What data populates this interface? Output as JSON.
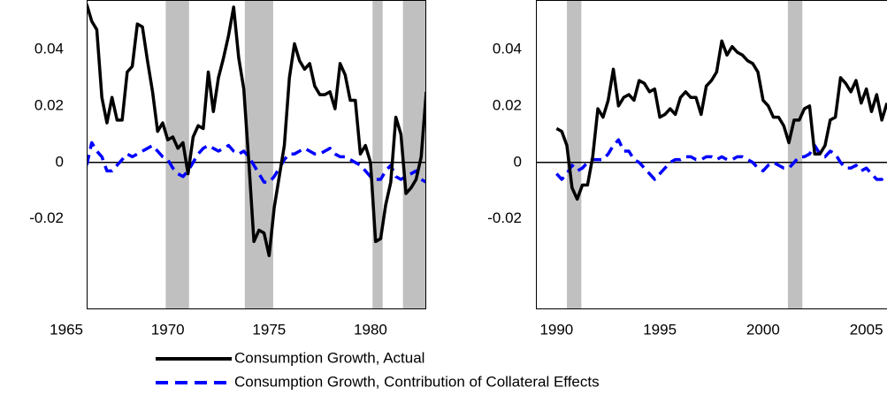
{
  "chart_data": [
    {
      "type": "line",
      "x": [
        1966,
        1966.25,
        1966.5,
        1966.75,
        1967,
        1967.25,
        1967.5,
        1967.75,
        1968,
        1968.25,
        1968.5,
        1968.75,
        1969,
        1969.25,
        1969.5,
        1969.75,
        1970,
        1970.25,
        1970.5,
        1970.75,
        1971,
        1971.25,
        1971.5,
        1971.75,
        1972,
        1972.25,
        1972.5,
        1972.75,
        1973,
        1973.25,
        1973.5,
        1973.75,
        1974,
        1974.25,
        1974.5,
        1974.75,
        1975,
        1975.25,
        1975.5,
        1975.75,
        1976,
        1976.25,
        1976.5,
        1976.75,
        1977,
        1977.25,
        1977.5,
        1977.75,
        1978,
        1978.25,
        1978.5,
        1978.75,
        1979,
        1979.25,
        1979.5,
        1979.75,
        1980,
        1980.25,
        1980.5,
        1980.75,
        1981,
        1981.25,
        1981.5,
        1981.75,
        1982,
        1982.25,
        1982.5,
        1982.75
      ],
      "series": [
        {
          "name": "Consumption Growth, Actual",
          "color": "#000000",
          "dashed": false,
          "values": [
            0.056,
            0.05,
            0.047,
            0.023,
            0.014,
            0.023,
            0.015,
            0.015,
            0.032,
            0.034,
            0.049,
            0.048,
            0.036,
            0.025,
            0.011,
            0.014,
            0.008,
            0.009,
            0.005,
            0.007,
            -0.004,
            0.009,
            0.013,
            0.012,
            0.032,
            0.018,
            0.03,
            0.037,
            0.045,
            0.055,
            0.037,
            0.026,
            0.0,
            -0.028,
            -0.024,
            -0.025,
            -0.033,
            -0.016,
            -0.005,
            0.006,
            0.03,
            0.042,
            0.036,
            0.033,
            0.035,
            0.027,
            0.024,
            0.024,
            0.025,
            0.019,
            0.035,
            0.031,
            0.022,
            0.022,
            0.003,
            0.006,
            0.0,
            -0.028,
            -0.027,
            -0.015,
            -0.007,
            0.016,
            0.01,
            -0.011,
            -0.009,
            -0.006,
            0.002,
            0.025
          ]
        },
        {
          "name": "Consumption Growth, Contribution of Collateral Effects",
          "color": "#0000ff",
          "dashed": true,
          "values": [
            -0.001,
            0.007,
            0.004,
            0.002,
            -0.003,
            -0.003,
            -0.001,
            0.001,
            0.003,
            0.002,
            0.003,
            0.004,
            0.005,
            0.006,
            0.004,
            0.002,
            0.001,
            -0.002,
            -0.004,
            -0.005,
            -0.003,
            0.0,
            0.003,
            0.005,
            0.006,
            0.005,
            0.004,
            0.005,
            0.006,
            0.004,
            0.003,
            0.004,
            0.002,
            -0.001,
            -0.004,
            -0.007,
            -0.007,
            -0.005,
            -0.002,
            0.001,
            0.003,
            0.003,
            0.004,
            0.005,
            0.004,
            0.003,
            0.003,
            0.004,
            0.005,
            0.003,
            0.002,
            0.002,
            0.001,
            0.0,
            -0.001,
            -0.003,
            -0.005,
            -0.006,
            -0.006,
            -0.003,
            -0.001,
            -0.005,
            -0.006,
            -0.005,
            -0.004,
            -0.003,
            -0.006,
            -0.007
          ]
        }
      ],
      "recessions": [
        [
          1969.9,
          1971.05
        ],
        [
          1973.8,
          1975.2
        ],
        [
          1980.1,
          1980.6
        ],
        [
          1981.6,
          1982.75
        ]
      ],
      "recession_color": "#c0c0c0",
      "xlim": [
        1966,
        1982.75
      ],
      "xticks": [
        1965,
        1970,
        1975,
        1980
      ],
      "ylim": [
        -0.052,
        0.0575
      ],
      "yticks": [
        {
          "value": 0.04,
          "label": "0.04"
        },
        {
          "value": 0.02,
          "label": "0.02"
        },
        0,
        {
          "value": -0.02,
          "label": "-0.02"
        }
      ]
    },
    {
      "type": "line",
      "x": [
        1990,
        1990.25,
        1990.5,
        1990.75,
        1991,
        1991.25,
        1991.5,
        1991.75,
        1992,
        1992.25,
        1992.5,
        1992.75,
        1993,
        1993.25,
        1993.5,
        1993.75,
        1994,
        1994.25,
        1994.5,
        1994.75,
        1995,
        1995.25,
        1995.5,
        1995.75,
        1996,
        1996.25,
        1996.5,
        1996.75,
        1997,
        1997.25,
        1997.5,
        1997.75,
        1998,
        1998.25,
        1998.5,
        1998.75,
        1999,
        1999.25,
        1999.5,
        1999.75,
        2000,
        2000.25,
        2000.5,
        2000.75,
        2001,
        2001.25,
        2001.5,
        2001.75,
        2002,
        2002.25,
        2002.5,
        2002.75,
        2003,
        2003.25,
        2003.5,
        2003.75,
        2004,
        2004.25,
        2004.5,
        2004.75,
        2005,
        2005.25,
        2005.5,
        2005.75,
        2006
      ],
      "series": [
        {
          "name": "Consumption Growth, Actual",
          "color": "#000000",
          "dashed": false,
          "values": [
            0.012,
            0.011,
            0.006,
            -0.009,
            -0.013,
            -0.008,
            -0.008,
            0.002,
            0.019,
            0.016,
            0.022,
            0.033,
            0.02,
            0.023,
            0.024,
            0.022,
            0.029,
            0.028,
            0.025,
            0.026,
            0.016,
            0.017,
            0.019,
            0.017,
            0.023,
            0.025,
            0.023,
            0.023,
            0.017,
            0.027,
            0.029,
            0.032,
            0.043,
            0.038,
            0.041,
            0.039,
            0.038,
            0.036,
            0.035,
            0.032,
            0.022,
            0.02,
            0.016,
            0.016,
            0.013,
            0.007,
            0.015,
            0.015,
            0.019,
            0.02,
            0.003,
            0.003,
            0.006,
            0.015,
            0.016,
            0.03,
            0.028,
            0.025,
            0.029,
            0.021,
            0.026,
            0.018,
            0.024,
            0.015,
            0.021
          ]
        },
        {
          "name": "Consumption Growth, Contribution of Collateral Effects",
          "color": "#0000ff",
          "dashed": true,
          "values": [
            -0.004,
            -0.006,
            -0.004,
            -0.001,
            -0.003,
            -0.002,
            0.0,
            0.001,
            0.001,
            0.001,
            0.003,
            0.006,
            0.008,
            0.004,
            0.004,
            0.001,
            0.0,
            -0.002,
            -0.004,
            -0.006,
            -0.004,
            -0.002,
            0.0,
            0.001,
            0.001,
            0.002,
            0.002,
            0.001,
            0.001,
            0.002,
            0.002,
            0.001,
            0.002,
            0.001,
            0.001,
            0.002,
            0.002,
            0.001,
            0.0,
            -0.002,
            -0.003,
            -0.001,
            0.0,
            -0.001,
            -0.002,
            -0.002,
            0.0,
            0.002,
            0.002,
            0.003,
            0.006,
            0.003,
            0.002,
            0.004,
            0.003,
            0.0,
            -0.002,
            -0.002,
            -0.001,
            -0.003,
            -0.002,
            -0.004,
            -0.006,
            -0.006,
            -0.005
          ]
        }
      ],
      "recessions": [
        [
          1990.5,
          1991.2
        ],
        [
          2001.2,
          2001.9
        ]
      ],
      "recession_color": "#c0c0c0",
      "xlim": [
        1989,
        2006
      ],
      "xticks": [
        1990,
        1995,
        2000,
        2005
      ],
      "ylim": [
        -0.052,
        0.0575
      ],
      "yticks": [
        {
          "value": 0.04,
          "label": "0.04"
        },
        {
          "value": 0.02,
          "label": "0.02"
        },
        0,
        {
          "value": -0.02,
          "label": "-0.02"
        }
      ]
    }
  ]
}
